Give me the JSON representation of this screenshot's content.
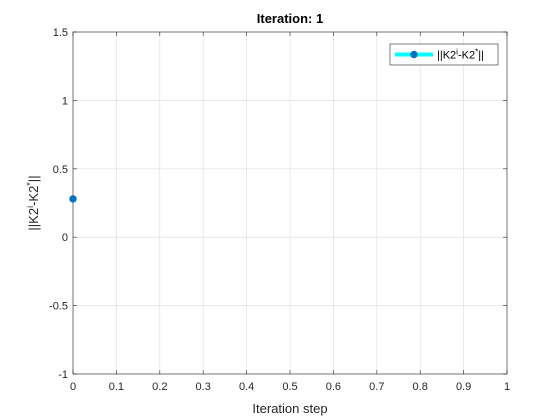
{
  "chart_data": {
    "type": "line",
    "title": "Iteration: 1",
    "xlabel": "Iteration step",
    "ylabel": {
      "base": "||K2",
      "sup1": "i",
      "mid": "-K2",
      "sup2": "*",
      "end": "||"
    },
    "xlim": [
      0,
      1
    ],
    "ylim": [
      -1,
      1.5
    ],
    "xticks": [
      0,
      0.1,
      0.2,
      0.3,
      0.4,
      0.5,
      0.6,
      0.7,
      0.8,
      0.9,
      1
    ],
    "xtick_labels": [
      "0",
      "0.1",
      "0.2",
      "0.3",
      "0.4",
      "0.5",
      "0.6",
      "0.7",
      "0.8",
      "0.9",
      "1"
    ],
    "yticks": [
      -1,
      -0.5,
      0,
      0.5,
      1,
      1.5
    ],
    "ytick_labels": [
      "-1",
      "-0.5",
      "0",
      "0.5",
      "1",
      "1.5"
    ],
    "grid": true,
    "legend_position": "top-right",
    "series": [
      {
        "name": {
          "base": "||K2",
          "sup1": "i",
          "mid": "-K2",
          "sup2": "*",
          "end": "||"
        },
        "x": [
          0
        ],
        "y": [
          0.28
        ],
        "line_color": "#00ffff",
        "marker_color": "#0072bd"
      }
    ]
  }
}
